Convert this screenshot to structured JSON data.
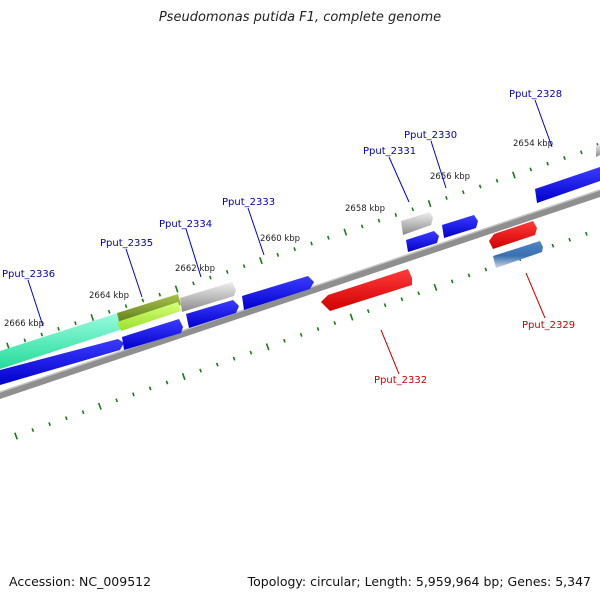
{
  "title": "Pseudomonas putida F1, complete genome",
  "footer": {
    "accession": "Accession: NC_009512",
    "summary": "Topology: circular; Length: 5,959,964 bp; Genes: 5,347"
  },
  "map": {
    "scale_labels": [
      "2666 kbp",
      "2664 kbp",
      "2662 kbp",
      "2660 kbp",
      "2658 kbp",
      "2656 kbp",
      "2654 kbp"
    ],
    "gene_labels": {
      "forward": [
        "Pput_2336",
        "Pput_2335",
        "Pput_2334",
        "Pput_2333",
        "Pput_2331",
        "Pput_2330",
        "Pput_2328"
      ],
      "reverse": [
        "Pput_2332",
        "Pput_2329"
      ]
    },
    "colors": {
      "backbone": "#888888",
      "forward_cds": "#0000ee",
      "reverse_cds": "#ee0000",
      "forward_label": "#0000aa",
      "reverse_label": "#cc0000",
      "tick": "#1a7a1a"
    }
  }
}
